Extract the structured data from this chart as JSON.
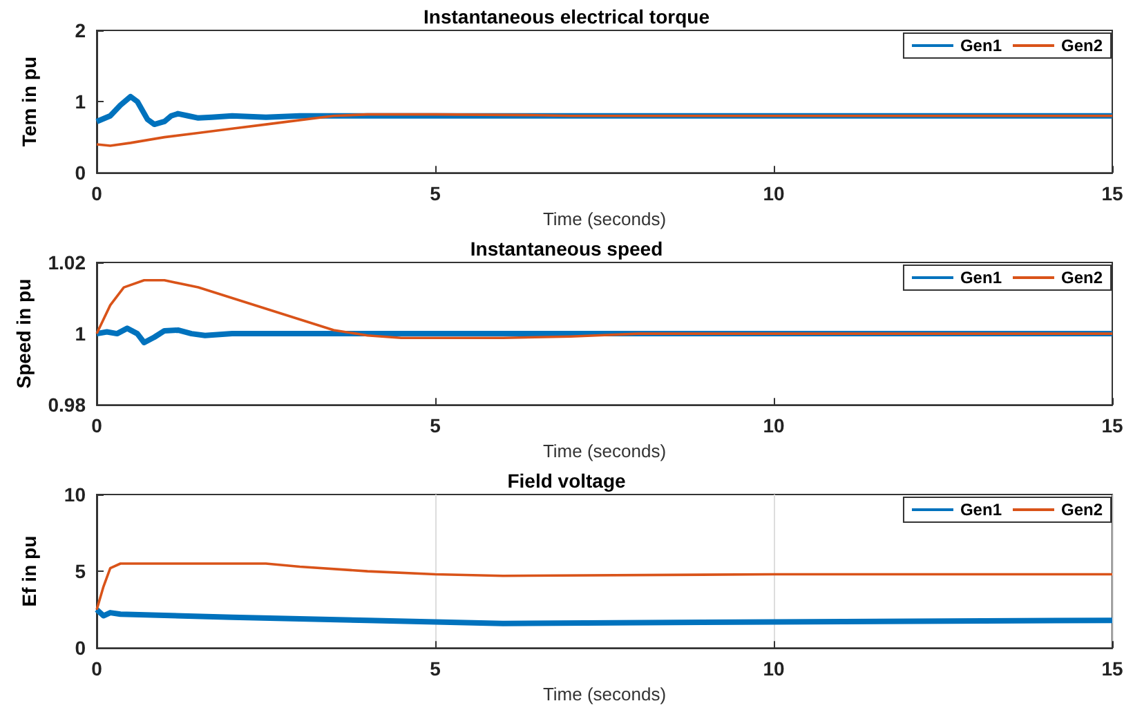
{
  "chart_data": [
    {
      "type": "line",
      "title": "Instantaneous electrical torque",
      "xlabel": "Time (seconds)",
      "ylabel": "Tem in pu",
      "xlim": [
        0,
        15
      ],
      "xticks": [
        0,
        5,
        10,
        15
      ],
      "ylim": [
        0,
        2
      ],
      "yticks": [
        0,
        1,
        2
      ],
      "grid": false,
      "legend": "top right",
      "series": [
        {
          "name": "Gen1",
          "color": "#0072bd",
          "x": [
            0,
            0.2,
            0.35,
            0.5,
            0.6,
            0.75,
            0.85,
            1.0,
            1.1,
            1.2,
            1.35,
            1.5,
            1.7,
            2.0,
            2.5,
            3,
            5,
            15
          ],
          "values": [
            0.72,
            0.8,
            0.95,
            1.07,
            1.0,
            0.75,
            0.68,
            0.72,
            0.8,
            0.83,
            0.8,
            0.77,
            0.78,
            0.8,
            0.78,
            0.8,
            0.8,
            0.8
          ]
        },
        {
          "name": "Gen2",
          "color": "#d95319",
          "x": [
            0,
            0.2,
            0.5,
            1,
            1.5,
            2,
            2.5,
            3,
            3.5,
            4,
            5,
            6.5,
            7,
            15
          ],
          "values": [
            0.4,
            0.38,
            0.42,
            0.5,
            0.56,
            0.62,
            0.68,
            0.74,
            0.8,
            0.82,
            0.82,
            0.81,
            0.8,
            0.8
          ]
        }
      ]
    },
    {
      "type": "line",
      "title": "Instantaneous speed",
      "xlabel": "Time (seconds)",
      "ylabel": "Speed in pu",
      "xlim": [
        0,
        15
      ],
      "xticks": [
        0,
        5,
        10,
        15
      ],
      "ylim": [
        0.98,
        1.02
      ],
      "yticks": [
        0.98,
        1,
        1.02
      ],
      "grid": false,
      "legend": "top right",
      "series": [
        {
          "name": "Gen1",
          "color": "#0072bd",
          "x": [
            0,
            0.15,
            0.3,
            0.45,
            0.6,
            0.7,
            0.85,
            1.0,
            1.2,
            1.4,
            1.6,
            2,
            15
          ],
          "values": [
            1.0,
            1.0005,
            1.0,
            1.0015,
            1.0,
            0.9975,
            0.999,
            1.0008,
            1.001,
            1.0,
            0.9995,
            1.0,
            1.0
          ]
        },
        {
          "name": "Gen2",
          "color": "#d95319",
          "x": [
            0,
            0.2,
            0.4,
            0.7,
            1.0,
            1.5,
            2,
            2.5,
            3,
            3.5,
            4,
            4.5,
            5,
            6,
            7,
            8,
            15
          ],
          "values": [
            1.0,
            1.008,
            1.013,
            1.015,
            1.015,
            1.013,
            1.01,
            1.007,
            1.004,
            1.001,
            0.9995,
            0.9988,
            0.9988,
            0.9988,
            0.9992,
            1.0,
            1.0
          ]
        }
      ]
    },
    {
      "type": "line",
      "title": "Field voltage",
      "xlabel": "Time (seconds)",
      "ylabel": "Ef in pu",
      "xlim": [
        0,
        15
      ],
      "xticks": [
        0,
        5,
        10,
        15
      ],
      "ylim": [
        0,
        10
      ],
      "yticks": [
        0,
        5,
        10
      ],
      "grid": "x",
      "legend": "top right",
      "series": [
        {
          "name": "Gen1",
          "color": "#0072bd",
          "x": [
            0,
            0.1,
            0.2,
            0.35,
            2,
            4,
            6,
            10,
            15
          ],
          "values": [
            2.5,
            2.1,
            2.3,
            2.2,
            2.0,
            1.8,
            1.6,
            1.7,
            1.8
          ]
        },
        {
          "name": "Gen2",
          "color": "#d95319",
          "x": [
            0,
            0.1,
            0.2,
            0.35,
            2.5,
            3,
            4,
            5,
            6,
            10,
            15
          ],
          "values": [
            2.5,
            4.0,
            5.2,
            5.5,
            5.5,
            5.3,
            5.0,
            4.8,
            4.7,
            4.8,
            4.8
          ]
        }
      ]
    }
  ]
}
